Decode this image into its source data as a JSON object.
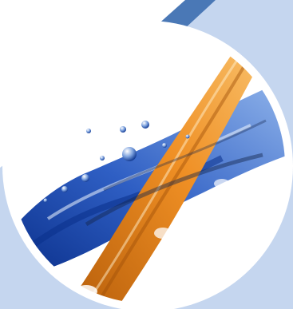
{
  "graphic": {
    "icon": "fluid-splash-graphic",
    "colors": {
      "background": "#ffffff",
      "panel": "#c5d6ef",
      "frame_bar": "#4a78b6",
      "ring": "#ffffff",
      "fluid_dark": "#0a2f8a",
      "fluid_mid": "#2f5fc4",
      "fluid_light": "#8fb3ea",
      "stream_dark": "#b85f0b",
      "stream_mid": "#ef8f24",
      "stream_light": "#f8c06a"
    }
  }
}
